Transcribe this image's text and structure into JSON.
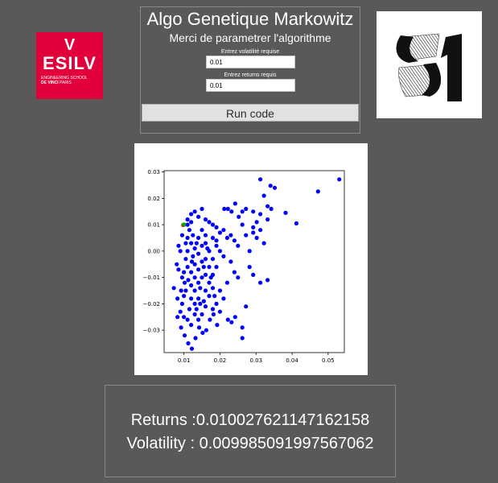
{
  "logo_left": {
    "brand": "ESILV",
    "mark": "V",
    "line1": "ENGINEERING SCHOOL",
    "line2_bold": "DE VINCI",
    "line2": " PARIS",
    "color": "#e2003b"
  },
  "logo_right": {
    "icon": "31-logo"
  },
  "panel": {
    "title": "Algo Genetique Markowitz",
    "subtitle": "Merci de parametrer l'algorithme",
    "volatility_label": "Entrez volatilité requise",
    "volatility_value": "0.01",
    "returns_label": "Entrez returns requis",
    "returns_value": "0.01",
    "run_label": "Run code"
  },
  "chart_data": {
    "type": "scatter",
    "title": "",
    "xlabel": "",
    "ylabel": "",
    "xlim": [
      0.0045,
      0.0545
    ],
    "ylim": [
      -0.0385,
      0.0305
    ],
    "xticks": [
      0.01,
      0.02,
      0.03,
      0.04,
      0.05
    ],
    "xtick_labels": [
      "0.01",
      "0.02",
      "0.03",
      "0.04",
      "0.05"
    ],
    "yticks": [
      0.03,
      0.02,
      0.01,
      0.0,
      -0.01,
      -0.02,
      -0.03
    ],
    "ytick_labels": [
      "0.03",
      "0.02",
      "0.01",
      "0.00",
      "−0.01",
      "−0.02",
      "−0.03"
    ],
    "grid": false,
    "series": [
      {
        "color": "#0000ff",
        "points": [
          [
            0.0531,
            0.0272
          ],
          [
            0.0472,
            0.0226
          ],
          [
            0.0412,
            0.0105
          ],
          [
            0.0382,
            0.0145
          ],
          [
            0.0352,
            0.024
          ],
          [
            0.034,
            0.0248
          ],
          [
            0.0342,
            0.016
          ],
          [
            0.0332,
            0.012
          ],
          [
            0.0312,
            0.0272
          ],
          [
            0.0322,
            0.021
          ],
          [
            0.0332,
            0.017
          ],
          [
            0.0312,
            0.014
          ],
          [
            0.0302,
            0.011
          ],
          [
            0.0292,
            0.015
          ],
          [
            0.0292,
            0.009
          ],
          [
            0.0312,
            0.008
          ],
          [
            0.0292,
            0.007
          ],
          [
            0.0322,
            0.003
          ],
          [
            0.0302,
            0.005
          ],
          [
            0.0332,
            -0.011
          ],
          [
            0.0312,
            -0.012
          ],
          [
            0.0292,
            -0.009
          ],
          [
            0.0282,
            0.0
          ],
          [
            0.0282,
            -0.006
          ],
          [
            0.0272,
            0.006
          ],
          [
            0.0262,
            0.01
          ],
          [
            0.0262,
            0.015
          ],
          [
            0.0252,
            0.013
          ],
          [
            0.0272,
            0.016
          ],
          [
            0.0242,
            0.018
          ],
          [
            0.0232,
            0.015
          ],
          [
            0.0222,
            0.016
          ],
          [
            0.0212,
            0.016
          ],
          [
            0.0272,
            -0.021
          ],
          [
            0.0262,
            -0.029
          ],
          [
            0.0262,
            -0.033
          ],
          [
            0.0242,
            -0.025
          ],
          [
            0.0232,
            -0.027
          ],
          [
            0.0222,
            -0.026
          ],
          [
            0.0192,
            -0.028
          ],
          [
            0.0182,
            -0.024
          ],
          [
            0.0172,
            -0.026
          ],
          [
            0.0162,
            -0.03
          ],
          [
            0.0152,
            -0.031
          ],
          [
            0.0142,
            -0.029
          ],
          [
            0.0132,
            -0.033
          ],
          [
            0.0122,
            -0.037
          ],
          [
            0.0112,
            -0.035
          ],
          [
            0.0102,
            -0.032
          ],
          [
            0.0092,
            -0.029
          ],
          [
            0.0082,
            -0.025
          ],
          [
            0.0082,
            -0.018
          ],
          [
            0.0072,
            -0.014
          ],
          [
            0.008,
            -0.005
          ],
          [
            0.0085,
            -0.007
          ],
          [
            0.009,
            0.0
          ],
          [
            0.0085,
            0.002
          ],
          [
            0.0095,
            0.006
          ],
          [
            0.01,
            0.01
          ],
          [
            0.011,
            0.012
          ],
          [
            0.012,
            0.014
          ],
          [
            0.013,
            0.015
          ],
          [
            0.015,
            0.016
          ],
          [
            0.014,
            0.013
          ],
          [
            0.016,
            0.012
          ],
          [
            0.017,
            0.011
          ],
          [
            0.018,
            0.01
          ],
          [
            0.019,
            0.009
          ],
          [
            0.02,
            0.007
          ],
          [
            0.021,
            0.008
          ],
          [
            0.022,
            0.005
          ],
          [
            0.023,
            0.006
          ],
          [
            0.024,
            0.004
          ],
          [
            0.025,
            0.002
          ],
          [
            0.02,
            0.0
          ],
          [
            0.021,
            -0.002
          ],
          [
            0.023,
            -0.004
          ],
          [
            0.024,
            -0.008
          ],
          [
            0.025,
            -0.01
          ],
          [
            0.022,
            -0.012
          ],
          [
            0.02,
            -0.015
          ],
          [
            0.021,
            -0.018
          ],
          [
            0.019,
            -0.02
          ],
          [
            0.018,
            -0.022
          ],
          [
            0.02,
            -0.023
          ],
          [
            0.016,
            -0.021
          ],
          [
            0.015,
            -0.024
          ],
          [
            0.014,
            -0.026
          ],
          [
            0.013,
            -0.024
          ],
          [
            0.012,
            -0.028
          ],
          [
            0.011,
            -0.026
          ],
          [
            0.01,
            -0.025
          ],
          [
            0.009,
            -0.023
          ],
          [
            0.0095,
            -0.02
          ],
          [
            0.01,
            -0.017
          ],
          [
            0.0092,
            -0.015
          ],
          [
            0.0102,
            -0.012
          ],
          [
            0.0095,
            -0.01
          ],
          [
            0.01,
            -0.008
          ],
          [
            0.011,
            -0.006
          ],
          [
            0.0105,
            -0.003
          ],
          [
            0.011,
            0.0
          ],
          [
            0.0105,
            0.003
          ],
          [
            0.011,
            0.005
          ],
          [
            0.0115,
            0.008
          ],
          [
            0.0125,
            0.006
          ],
          [
            0.012,
            0.003
          ],
          [
            0.013,
            0.001
          ],
          [
            0.0125,
            -0.002
          ],
          [
            0.013,
            -0.005
          ],
          [
            0.012,
            -0.008
          ],
          [
            0.013,
            -0.01
          ],
          [
            0.012,
            -0.013
          ],
          [
            0.013,
            -0.015
          ],
          [
            0.012,
            -0.018
          ],
          [
            0.013,
            -0.02
          ],
          [
            0.014,
            -0.018
          ],
          [
            0.014,
            -0.012
          ],
          [
            0.015,
            -0.01
          ],
          [
            0.014,
            -0.007
          ],
          [
            0.015,
            -0.004
          ],
          [
            0.014,
            -0.001
          ],
          [
            0.015,
            0.002
          ],
          [
            0.014,
            0.005
          ],
          [
            0.015,
            0.008
          ],
          [
            0.016,
            0.006
          ],
          [
            0.016,
            0.003
          ],
          [
            0.017,
            0.0
          ],
          [
            0.016,
            -0.003
          ],
          [
            0.017,
            -0.006
          ],
          [
            0.016,
            -0.009
          ],
          [
            0.017,
            -0.012
          ],
          [
            0.016,
            -0.015
          ],
          [
            0.017,
            -0.017
          ],
          [
            0.018,
            -0.014
          ],
          [
            0.018,
            -0.009
          ],
          [
            0.019,
            -0.006
          ],
          [
            0.018,
            -0.003
          ],
          [
            0.019,
            0.002
          ],
          [
            0.018,
            0.005
          ],
          [
            0.019,
            0.004
          ],
          [
            0.011,
            0.01
          ],
          [
            0.012,
            0.011
          ],
          [
            0.0105,
            -0.015
          ],
          [
            0.0115,
            -0.022
          ],
          [
            0.0135,
            -0.022
          ],
          [
            0.0145,
            -0.02
          ],
          [
            0.0155,
            -0.019
          ],
          [
            0.0112,
            -0.011
          ],
          [
            0.0122,
            -0.004
          ],
          [
            0.0135,
            0.003
          ],
          [
            0.0145,
            -0.014
          ],
          [
            0.0155,
            -0.006
          ],
          [
            0.0165,
            0.001
          ],
          [
            0.0175,
            -0.01
          ],
          [
            0.0185,
            -0.017
          ]
        ]
      },
      {
        "color": "#ff0000",
        "points": [
          [
            0.0098,
            0.0099
          ]
        ]
      },
      {
        "color": "#00b000",
        "points": [
          [
            0.01,
            0.0101
          ]
        ]
      }
    ]
  },
  "results": {
    "returns_text": "Returns :0.010027621147162158",
    "volatility_text": "Volatility : 0.009985091997567062"
  }
}
